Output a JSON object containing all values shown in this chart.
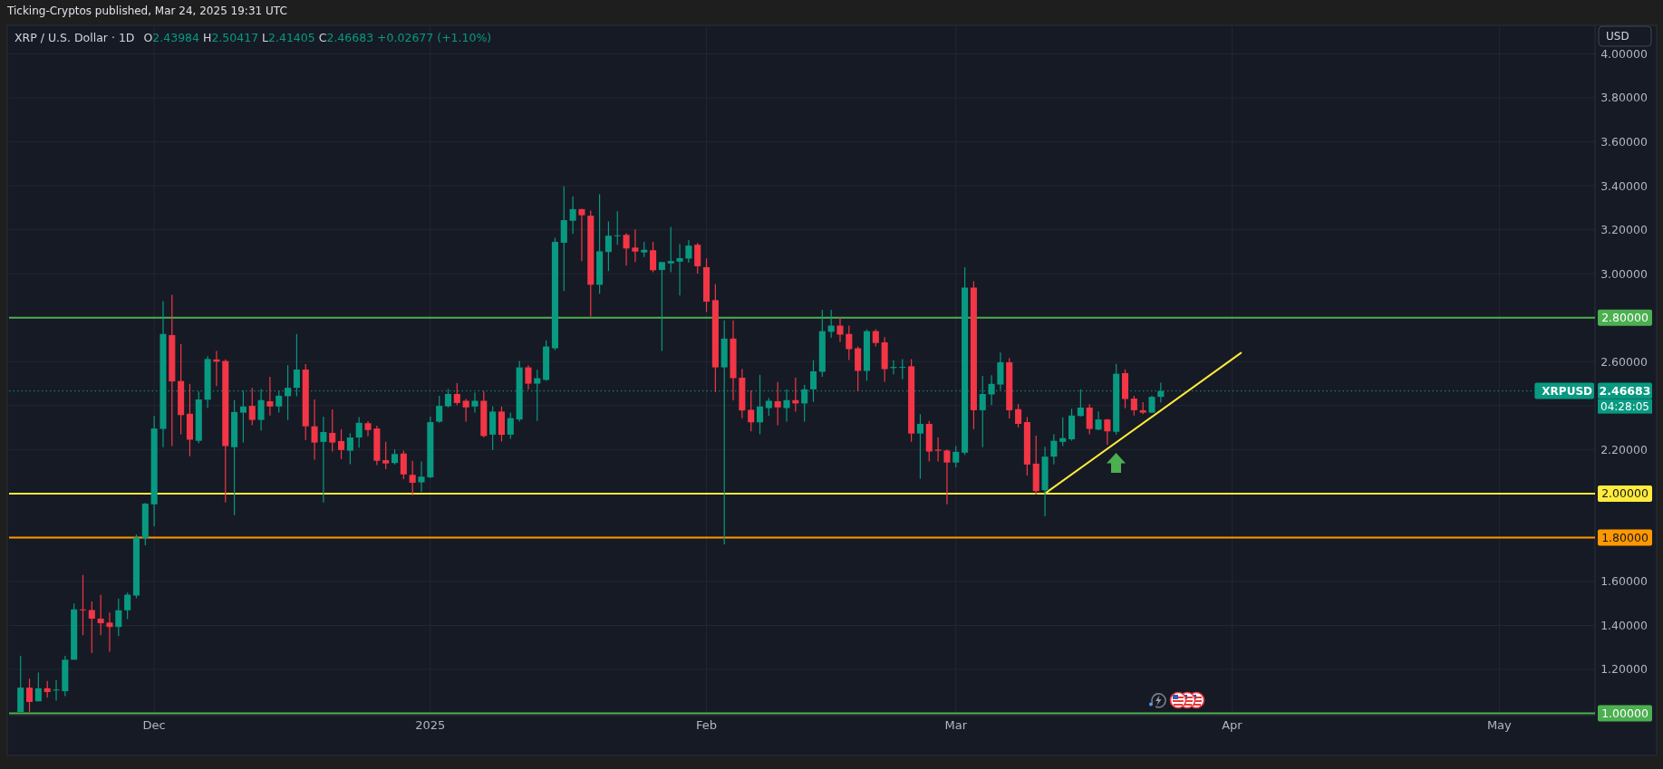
{
  "chart_data": {
    "type": "candlestick",
    "title": "XRP / U.S. Dollar · 1D",
    "subtitle": "O2.43984 H2.50417 L2.41405 C2.46683 +0.02677 (+1.10%)",
    "ylabel": "USD",
    "annotations": [
      "Ticking-Cryptos published, Mar 24, 2025 19:31 UTC",
      {
        "text": "XRPUSD",
        "y": 2.46683
      },
      "04:28:05"
    ],
    "x": [
      "2024-11-16",
      "2024-11-17",
      "2024-11-18",
      "2024-11-19",
      "2024-11-20",
      "2024-11-21",
      "2024-11-22",
      "2024-11-23",
      "2024-11-24",
      "2024-11-25",
      "2024-11-26",
      "2024-11-27",
      "2024-11-28",
      "2024-11-29",
      "2024-11-30",
      "2024-12-01",
      "2024-12-02",
      "2024-12-03",
      "2024-12-04",
      "2024-12-05",
      "2024-12-06",
      "2024-12-07",
      "2024-12-08",
      "2024-12-09",
      "2024-12-10",
      "2024-12-11",
      "2024-12-12",
      "2024-12-13",
      "2024-12-14",
      "2024-12-15",
      "2024-12-16",
      "2024-12-17",
      "2024-12-18",
      "2024-12-19",
      "2024-12-20",
      "2024-12-21",
      "2024-12-22",
      "2024-12-23",
      "2024-12-24",
      "2024-12-25",
      "2024-12-26",
      "2024-12-27",
      "2024-12-28",
      "2024-12-29",
      "2024-12-30",
      "2024-12-31",
      "2025-01-01",
      "2025-01-02",
      "2025-01-03",
      "2025-01-04",
      "2025-01-05",
      "2025-01-06",
      "2025-01-07",
      "2025-01-08",
      "2025-01-09",
      "2025-01-10",
      "2025-01-11",
      "2025-01-12",
      "2025-01-13",
      "2025-01-14",
      "2025-01-15",
      "2025-01-16",
      "2025-01-17",
      "2025-01-18",
      "2025-01-19",
      "2025-01-20",
      "2025-01-21",
      "2025-01-22",
      "2025-01-23",
      "2025-01-24",
      "2025-01-25",
      "2025-01-26",
      "2025-01-27",
      "2025-01-28",
      "2025-01-29",
      "2025-01-30",
      "2025-01-31",
      "2025-02-01",
      "2025-02-02",
      "2025-02-03",
      "2025-02-04",
      "2025-02-05",
      "2025-02-06",
      "2025-02-07",
      "2025-02-08",
      "2025-02-09",
      "2025-02-10",
      "2025-02-11",
      "2025-02-12",
      "2025-02-13",
      "2025-02-14",
      "2025-02-15",
      "2025-02-16",
      "2025-02-17",
      "2025-02-18",
      "2025-02-19",
      "2025-02-20",
      "2025-02-21",
      "2025-02-22",
      "2025-02-23",
      "2025-02-24",
      "2025-02-25",
      "2025-02-26",
      "2025-02-27",
      "2025-02-28",
      "2025-03-01",
      "2025-03-02",
      "2025-03-03",
      "2025-03-04",
      "2025-03-05",
      "2025-03-06",
      "2025-03-07",
      "2025-03-08",
      "2025-03-09",
      "2025-03-10",
      "2025-03-11",
      "2025-03-12",
      "2025-03-13",
      "2025-03-14",
      "2025-03-15",
      "2025-03-16",
      "2025-03-17",
      "2025-03-18",
      "2025-03-19",
      "2025-03-20",
      "2025-03-21",
      "2025-03-22",
      "2025-03-23",
      "2025-03-24"
    ],
    "ohlc": [
      [
        1.006,
        1.262,
        1.006,
        1.117
      ],
      [
        1.117,
        1.158,
        1.006,
        1.052
      ],
      [
        1.055,
        1.186,
        1.055,
        1.114
      ],
      [
        1.114,
        1.148,
        1.071,
        1.097
      ],
      [
        1.105,
        1.151,
        1.058,
        1.108
      ],
      [
        1.101,
        1.262,
        1.079,
        1.244
      ],
      [
        1.244,
        1.5,
        1.244,
        1.473
      ],
      [
        1.473,
        1.63,
        1.356,
        1.47
      ],
      [
        1.47,
        1.509,
        1.274,
        1.431
      ],
      [
        1.431,
        1.539,
        1.356,
        1.41
      ],
      [
        1.413,
        1.459,
        1.28,
        1.393
      ],
      [
        1.393,
        1.522,
        1.352,
        1.469
      ],
      [
        1.469,
        1.549,
        1.429,
        1.54
      ],
      [
        1.536,
        1.814,
        1.524,
        1.8
      ],
      [
        1.797,
        1.957,
        1.765,
        1.954
      ],
      [
        1.951,
        2.353,
        1.851,
        2.296
      ],
      [
        2.294,
        2.875,
        2.211,
        2.726
      ],
      [
        2.721,
        2.904,
        2.216,
        2.51
      ],
      [
        2.512,
        2.68,
        2.27,
        2.357
      ],
      [
        2.363,
        2.499,
        2.17,
        2.245
      ],
      [
        2.24,
        2.464,
        2.229,
        2.428
      ],
      [
        2.427,
        2.625,
        2.389,
        2.612
      ],
      [
        2.61,
        2.649,
        2.489,
        2.6
      ],
      [
        2.603,
        2.61,
        1.959,
        2.216
      ],
      [
        2.211,
        2.425,
        1.902,
        2.371
      ],
      [
        2.368,
        2.469,
        2.232,
        2.396
      ],
      [
        2.399,
        2.481,
        2.311,
        2.335
      ],
      [
        2.335,
        2.476,
        2.286,
        2.425
      ],
      [
        2.42,
        2.531,
        2.355,
        2.396
      ],
      [
        2.396,
        2.469,
        2.368,
        2.445
      ],
      [
        2.443,
        2.584,
        2.334,
        2.481
      ],
      [
        2.481,
        2.726,
        2.443,
        2.564
      ],
      [
        2.564,
        2.589,
        2.244,
        2.306
      ],
      [
        2.306,
        2.428,
        2.154,
        2.232
      ],
      [
        2.235,
        2.35,
        1.959,
        2.28
      ],
      [
        2.276,
        2.383,
        2.191,
        2.232
      ],
      [
        2.239,
        2.293,
        2.157,
        2.198
      ],
      [
        2.195,
        2.275,
        2.134,
        2.255
      ],
      [
        2.255,
        2.348,
        2.209,
        2.322
      ],
      [
        2.32,
        2.329,
        2.26,
        2.289
      ],
      [
        2.296,
        2.309,
        2.129,
        2.149
      ],
      [
        2.152,
        2.235,
        2.111,
        2.137
      ],
      [
        2.139,
        2.201,
        2.132,
        2.18
      ],
      [
        2.182,
        2.195,
        2.065,
        2.087
      ],
      [
        2.085,
        2.149,
        1.992,
        2.049
      ],
      [
        2.051,
        2.146,
        2.008,
        2.077
      ],
      [
        2.074,
        2.35,
        2.07,
        2.325
      ],
      [
        2.327,
        2.445,
        2.322,
        2.399
      ],
      [
        2.397,
        2.476,
        2.392,
        2.453
      ],
      [
        2.453,
        2.502,
        2.402,
        2.412
      ],
      [
        2.422,
        2.43,
        2.327,
        2.392
      ],
      [
        2.396,
        2.46,
        2.368,
        2.422
      ],
      [
        2.422,
        2.466,
        2.255,
        2.262
      ],
      [
        2.268,
        2.396,
        2.198,
        2.373
      ],
      [
        2.373,
        2.396,
        2.237,
        2.267
      ],
      [
        2.268,
        2.368,
        2.249,
        2.343
      ],
      [
        2.337,
        2.603,
        2.327,
        2.574
      ],
      [
        2.574,
        2.584,
        2.473,
        2.5
      ],
      [
        2.5,
        2.563,
        2.33,
        2.525
      ],
      [
        2.517,
        2.697,
        2.513,
        2.669
      ],
      [
        2.661,
        3.164,
        2.652,
        3.145
      ],
      [
        3.141,
        3.398,
        2.922,
        3.244
      ],
      [
        3.241,
        3.352,
        3.181,
        3.294
      ],
      [
        3.294,
        3.296,
        3.058,
        3.266
      ],
      [
        3.264,
        3.287,
        2.805,
        2.95
      ],
      [
        2.95,
        3.362,
        2.909,
        3.102
      ],
      [
        3.099,
        3.238,
        3.012,
        3.173
      ],
      [
        3.172,
        3.284,
        3.132,
        3.175
      ],
      [
        3.177,
        3.184,
        3.037,
        3.115
      ],
      [
        3.119,
        3.202,
        3.053,
        3.101
      ],
      [
        3.097,
        3.145,
        3.076,
        3.109
      ],
      [
        3.107,
        3.145,
        3.007,
        3.016
      ],
      [
        3.017,
        3.053,
        2.649,
        3.053
      ],
      [
        3.047,
        3.213,
        3.007,
        3.058
      ],
      [
        3.055,
        3.135,
        2.901,
        3.071
      ],
      [
        3.069,
        3.153,
        3.05,
        3.128
      ],
      [
        3.132,
        3.14,
        3.001,
        3.034
      ],
      [
        3.03,
        3.07,
        2.826,
        2.873
      ],
      [
        2.88,
        2.952,
        2.461,
        2.574
      ],
      [
        2.574,
        2.788,
        1.769,
        2.705
      ],
      [
        2.705,
        2.788,
        2.424,
        2.525
      ],
      [
        2.527,
        2.567,
        2.343,
        2.378
      ],
      [
        2.381,
        2.469,
        2.283,
        2.324
      ],
      [
        2.324,
        2.54,
        2.27,
        2.396
      ],
      [
        2.389,
        2.435,
        2.353,
        2.422
      ],
      [
        2.42,
        2.507,
        2.311,
        2.392
      ],
      [
        2.389,
        2.474,
        2.327,
        2.425
      ],
      [
        2.425,
        2.527,
        2.373,
        2.41
      ],
      [
        2.41,
        2.494,
        2.327,
        2.474
      ],
      [
        2.474,
        2.607,
        2.417,
        2.556
      ],
      [
        2.554,
        2.836,
        2.531,
        2.739
      ],
      [
        2.736,
        2.836,
        2.708,
        2.764
      ],
      [
        2.764,
        2.803,
        2.69,
        2.723
      ],
      [
        2.726,
        2.764,
        2.607,
        2.657
      ],
      [
        2.661,
        2.669,
        2.466,
        2.558
      ],
      [
        2.558,
        2.747,
        2.513,
        2.739
      ],
      [
        2.739,
        2.747,
        2.669,
        2.685
      ],
      [
        2.688,
        2.711,
        2.509,
        2.566
      ],
      [
        2.571,
        2.607,
        2.543,
        2.576
      ],
      [
        2.574,
        2.612,
        2.52,
        2.576
      ],
      [
        2.579,
        2.612,
        2.235,
        2.273
      ],
      [
        2.273,
        2.361,
        2.067,
        2.317
      ],
      [
        2.317,
        2.33,
        2.146,
        2.191
      ],
      [
        2.2,
        2.255,
        2.146,
        2.195
      ],
      [
        2.196,
        2.2,
        1.951,
        2.141
      ],
      [
        2.141,
        2.216,
        2.119,
        2.19
      ],
      [
        2.186,
        3.029,
        2.175,
        2.937
      ],
      [
        2.937,
        2.966,
        2.293,
        2.379
      ],
      [
        2.379,
        2.535,
        2.211,
        2.453
      ],
      [
        2.451,
        2.538,
        2.402,
        2.499
      ],
      [
        2.496,
        2.641,
        2.471,
        2.597
      ],
      [
        2.597,
        2.617,
        2.342,
        2.379
      ],
      [
        2.384,
        2.407,
        2.301,
        2.317
      ],
      [
        2.325,
        2.348,
        2.082,
        2.132
      ],
      [
        2.136,
        2.263,
        1.995,
        2.011
      ],
      [
        2.015,
        2.213,
        1.897,
        2.168
      ],
      [
        2.168,
        2.27,
        2.132,
        2.24
      ],
      [
        2.235,
        2.347,
        2.216,
        2.252
      ],
      [
        2.247,
        2.386,
        2.24,
        2.355
      ],
      [
        2.353,
        2.474,
        2.35,
        2.391
      ],
      [
        2.391,
        2.407,
        2.27,
        2.294
      ],
      [
        2.291,
        2.374,
        2.288,
        2.337
      ],
      [
        2.337,
        2.34,
        2.222,
        2.283
      ],
      [
        2.281,
        2.59,
        2.268,
        2.545
      ],
      [
        2.548,
        2.565,
        2.388,
        2.43
      ],
      [
        2.432,
        2.445,
        2.355,
        2.379
      ],
      [
        2.379,
        2.416,
        2.361,
        2.368
      ],
      [
        2.368,
        2.445,
        2.366,
        2.44006
      ],
      [
        2.43984,
        2.50417,
        2.41405,
        2.46683
      ]
    ],
    "series": [
      {
        "type": "line",
        "color": "#ffeb3b",
        "x": [
          "2025-03-11",
          "2025-04-02"
        ],
        "values": [
          2.0,
          2.64
        ]
      }
    ],
    "xlim": [
      "2024-11-14T17:00",
      "2025-05-11T18:00"
    ],
    "ylim": [
      0.99,
      4.13
    ],
    "xticks": [
      {
        "value": "2024-12-01",
        "label": "Dec"
      },
      {
        "value": "2025-01-01",
        "label": "2025"
      },
      {
        "value": "2025-02-01",
        "label": "Feb"
      },
      {
        "value": "2025-03-01",
        "label": "Mar"
      },
      {
        "value": "2025-04-01",
        "label": "Apr"
      },
      {
        "value": "2025-05-01",
        "label": "May"
      }
    ],
    "yticks": [
      {
        "value": 1.2,
        "label": "1.20000"
      },
      {
        "value": 1.4,
        "label": "1.40000"
      },
      {
        "value": 1.6,
        "label": "1.60000"
      },
      {
        "value": 1.8,
        "label": null
      },
      {
        "value": 2.0,
        "label": null
      },
      {
        "value": 2.2,
        "label": "2.20000"
      },
      {
        "value": 2.4,
        "label": null
      },
      {
        "value": 2.6,
        "label": "2.60000"
      },
      {
        "value": 2.8,
        "label": null
      },
      {
        "value": 3.0,
        "label": "3.00000"
      },
      {
        "value": 3.2,
        "label": "3.20000"
      },
      {
        "value": 3.4,
        "label": "3.40000"
      },
      {
        "value": 3.6,
        "label": "3.60000"
      },
      {
        "value": 3.8,
        "label": "3.80000"
      },
      {
        "value": 4.0,
        "label": "4.00000"
      }
    ],
    "grid": true,
    "ref_lines": [
      {
        "axis": "y",
        "value": 2.8,
        "label": "2.80000",
        "color": "#4caf50"
      },
      {
        "axis": "y",
        "value": 2.0,
        "label": "2.00000",
        "color": "#ffeb3b"
      },
      {
        "axis": "y",
        "value": 1.8,
        "label": "1.80000",
        "color": "#ff9800"
      },
      {
        "axis": "y",
        "value": 1.0,
        "label": "1.00000",
        "color": "#4caf50"
      },
      {
        "axis": "y",
        "value": 2.46683,
        "label": "2.46683",
        "color": "#089981",
        "line_style": "dotted"
      }
    ]
  }
}
